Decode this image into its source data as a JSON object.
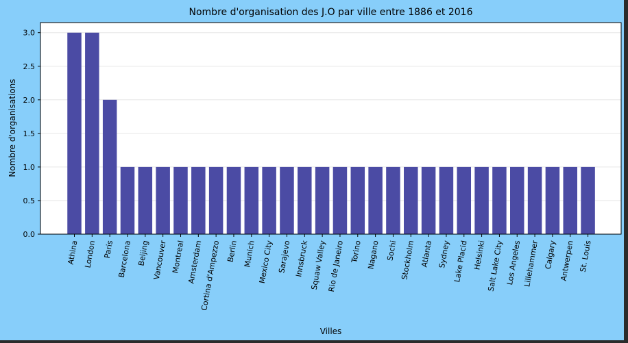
{
  "colors": {
    "figure_background": "#87cefa",
    "plot_background": "#ffffff",
    "bar": "#4b4ba4",
    "grid": "#e6e6e6"
  },
  "chart_data": {
    "type": "bar",
    "title": "Nombre d'organisation des J.O par ville entre 1886 et 2016",
    "xlabel": "Villes",
    "ylabel": "Nombre d'organisations",
    "categories": [
      "Athina",
      "London",
      "Paris",
      "Barcelona",
      "Beijing",
      "Vancouver",
      "Montreal",
      "Amsterdam",
      "Cortina d'Ampezzo",
      "Berlin",
      "Munich",
      "Mexico City",
      "Sarajevo",
      "Innsbruck",
      "Squaw Valley",
      "Rio de Janeiro",
      "Torino",
      "Nagano",
      "Sochi",
      "Stockholm",
      "Atlanta",
      "Sydney",
      "Lake Placid",
      "Helsinki",
      "Salt Lake City",
      "Los Angeles",
      "Lillehammer",
      "Calgary",
      "Antwerpen",
      "St. Louis"
    ],
    "values": [
      3,
      3,
      2,
      1,
      1,
      1,
      1,
      1,
      1,
      1,
      1,
      1,
      1,
      1,
      1,
      1,
      1,
      1,
      1,
      1,
      1,
      1,
      1,
      1,
      1,
      1,
      1,
      1,
      1,
      1
    ],
    "ylim": [
      0,
      3.15
    ],
    "yticks": [
      "0.0",
      "0.5",
      "1.0",
      "1.5",
      "2.0",
      "2.5",
      "3.0"
    ],
    "grid": "horizontal",
    "legend": "none"
  }
}
